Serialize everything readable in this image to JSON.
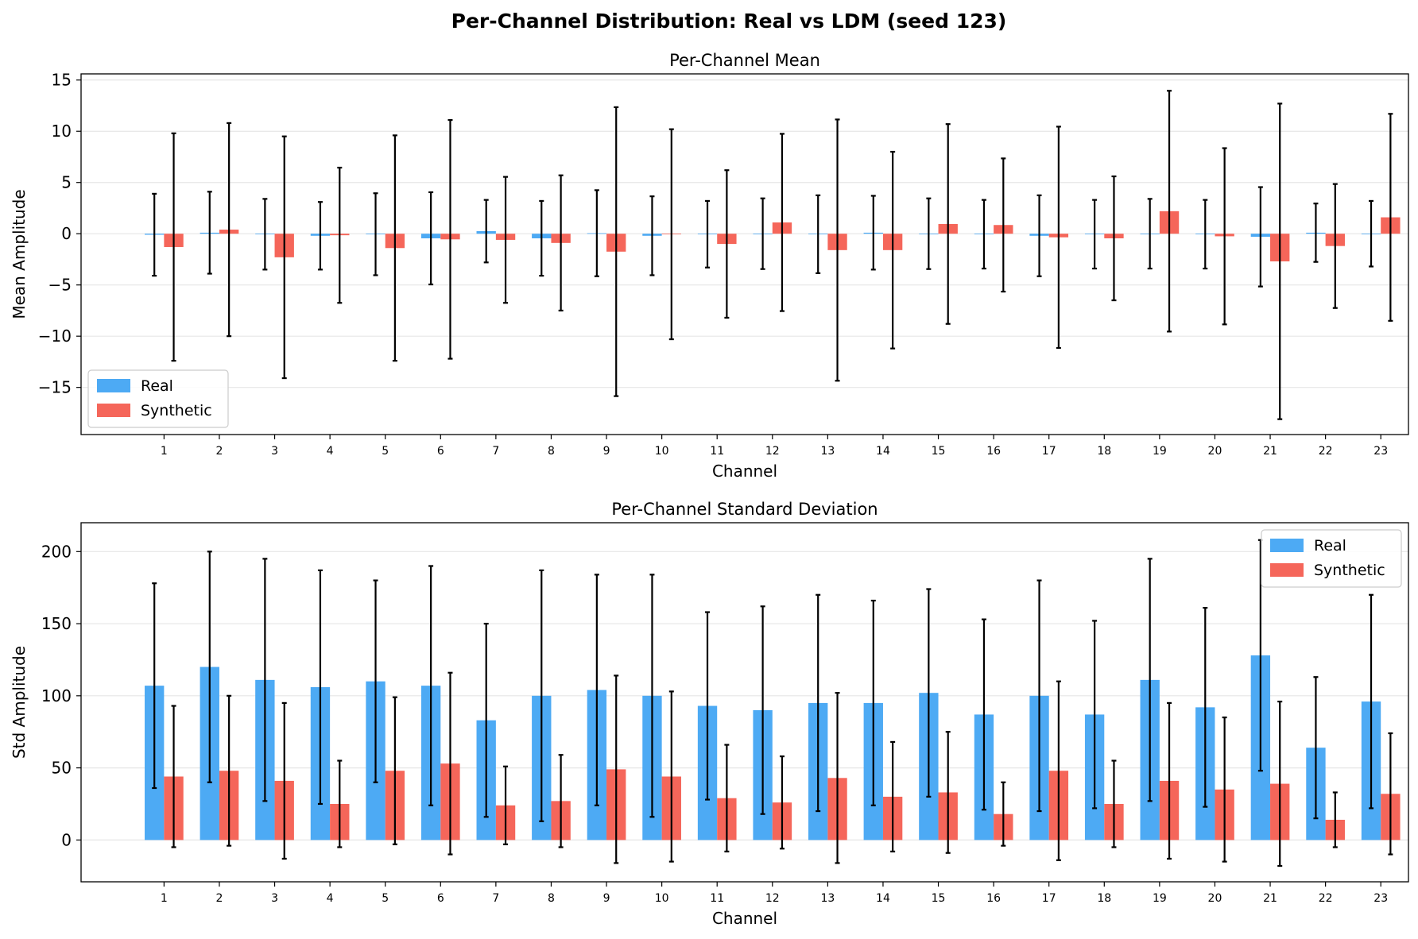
{
  "figure_title": "Per-Channel Distribution: Real vs LDM (seed 123)",
  "colors": {
    "real": "#4daaf4",
    "synthetic": "#f5665a",
    "errorbar": "#000000",
    "grid": "#e6e6e6"
  },
  "chart_data": [
    {
      "type": "bar",
      "title": "Per-Channel Mean",
      "xlabel": "Channel",
      "ylabel": "Mean Amplitude",
      "ylim": [
        -19.6,
        15.6
      ],
      "yticks": [
        -15,
        -10,
        -5,
        0,
        5,
        10,
        15
      ],
      "yticklabels": [
        "−15",
        "−10",
        "−5",
        "0",
        "5",
        "10",
        "15"
      ],
      "grid": "y",
      "legend": "lower-left",
      "categories": [
        "1",
        "2",
        "3",
        "4",
        "5",
        "6",
        "7",
        "8",
        "9",
        "10",
        "11",
        "12",
        "13",
        "14",
        "15",
        "16",
        "17",
        "18",
        "19",
        "20",
        "21",
        "22",
        "23"
      ],
      "series": [
        {
          "name": "Real",
          "values": [
            -0.1,
            0.1,
            -0.05,
            -0.2,
            -0.05,
            -0.45,
            0.25,
            -0.45,
            0.05,
            -0.2,
            -0.05,
            0.0,
            -0.05,
            0.1,
            0.0,
            -0.05,
            -0.2,
            -0.05,
            0.0,
            -0.05,
            -0.3,
            0.1,
            0.0
          ],
          "errors": [
            4.0,
            4.0,
            3.45,
            3.3,
            4.0,
            4.5,
            3.05,
            3.65,
            4.2,
            3.85,
            3.25,
            3.45,
            3.8,
            3.6,
            3.45,
            3.35,
            3.95,
            3.35,
            3.4,
            3.35,
            4.85,
            2.85,
            3.2
          ]
        },
        {
          "name": "Synthetic",
          "values": [
            -1.3,
            0.4,
            -2.3,
            -0.15,
            -1.4,
            -0.55,
            -0.6,
            -0.9,
            -1.75,
            -0.05,
            -1.0,
            1.1,
            -1.6,
            -1.6,
            0.95,
            0.85,
            -0.35,
            -0.45,
            2.2,
            -0.25,
            -2.7,
            -1.2,
            1.6
          ],
          "errors": [
            11.1,
            10.4,
            11.8,
            6.6,
            11.0,
            11.65,
            6.15,
            6.6,
            14.1,
            10.25,
            7.2,
            8.65,
            12.75,
            9.6,
            9.75,
            6.5,
            10.8,
            6.05,
            11.75,
            8.6,
            15.4,
            6.05,
            10.1
          ]
        }
      ]
    },
    {
      "type": "bar",
      "title": "Per-Channel Standard Deviation",
      "xlabel": "Channel",
      "ylabel": "Std Amplitude",
      "ylim": [
        -29,
        220
      ],
      "yticks": [
        0,
        50,
        100,
        150,
        200
      ],
      "yticklabels": [
        "0",
        "50",
        "100",
        "150",
        "200"
      ],
      "grid": "y",
      "legend": "upper-right",
      "categories": [
        "1",
        "2",
        "3",
        "4",
        "5",
        "6",
        "7",
        "8",
        "9",
        "10",
        "11",
        "12",
        "13",
        "14",
        "15",
        "16",
        "17",
        "18",
        "19",
        "20",
        "21",
        "22",
        "23"
      ],
      "series": [
        {
          "name": "Real",
          "values": [
            107,
            120,
            111,
            106,
            110,
            107,
            83,
            100,
            104,
            100,
            93,
            90,
            95,
            95,
            102,
            87,
            100,
            87,
            111,
            92,
            128,
            64,
            96
          ],
          "errors": [
            71,
            80,
            84,
            81,
            70,
            83,
            67,
            87,
            80,
            84,
            65,
            72,
            75,
            71,
            72,
            66,
            80,
            65,
            84,
            69,
            80,
            49,
            74
          ]
        },
        {
          "name": "Synthetic",
          "values": [
            44,
            48,
            41,
            25,
            48,
            53,
            24,
            27,
            49,
            44,
            29,
            26,
            43,
            30,
            33,
            18,
            48,
            25,
            41,
            35,
            39,
            14,
            32
          ],
          "errors": [
            49,
            52,
            54,
            30,
            51,
            63,
            27,
            32,
            65,
            59,
            37,
            32,
            59,
            38,
            42,
            22,
            62,
            30,
            54,
            50,
            57,
            19,
            42
          ]
        }
      ]
    }
  ]
}
